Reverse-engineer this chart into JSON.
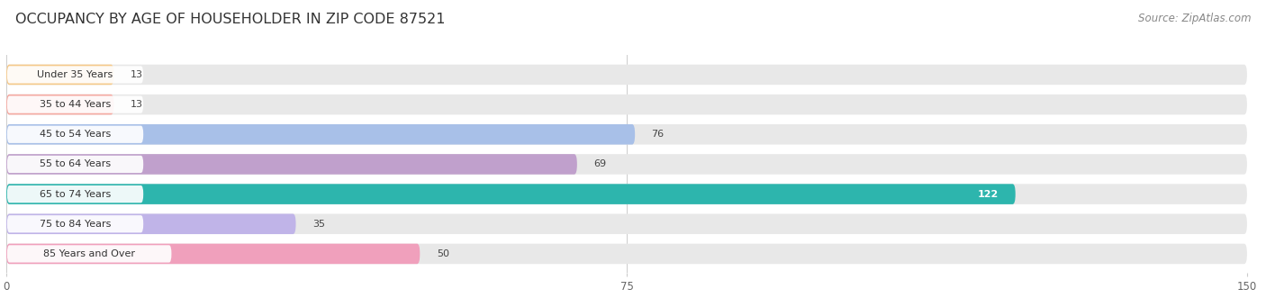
{
  "title": "OCCUPANCY BY AGE OF HOUSEHOLDER IN ZIP CODE 87521",
  "source": "Source: ZipAtlas.com",
  "categories": [
    "Under 35 Years",
    "35 to 44 Years",
    "45 to 54 Years",
    "55 to 64 Years",
    "65 to 74 Years",
    "75 to 84 Years",
    "85 Years and Over"
  ],
  "values": [
    13,
    13,
    76,
    69,
    122,
    35,
    50
  ],
  "bar_colors": [
    "#f5c98a",
    "#f4a8a0",
    "#a8c0e8",
    "#c0a0cc",
    "#2db5ad",
    "#c0b4e8",
    "#f0a0bc"
  ],
  "bar_bg_color": "#e8e8e8",
  "label_colors": [
    "#444444",
    "#444444",
    "#444444",
    "#444444",
    "#ffffff",
    "#444444",
    "#444444"
  ],
  "xlim": [
    0,
    150
  ],
  "xticks": [
    0,
    75,
    150
  ],
  "background_color": "#ffffff",
  "title_fontsize": 11.5,
  "source_fontsize": 8.5,
  "bar_height": 0.68,
  "figsize": [
    14.06,
    3.41
  ],
  "dpi": 100
}
